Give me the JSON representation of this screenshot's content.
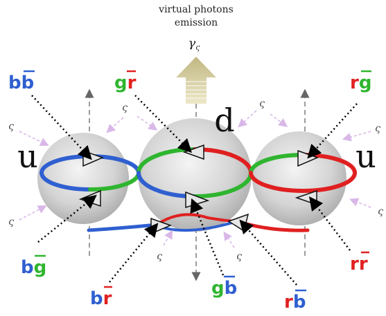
{
  "title": {
    "line1": "virtual photons",
    "line2": "emission",
    "gamma": "γ",
    "gamma_sub": "ς"
  },
  "quarks": {
    "left": "u",
    "center": "d",
    "right": "u"
  },
  "sigma_symbol": "ς",
  "colors": {
    "blue": "#2f5fd0",
    "green": "#2fb52f",
    "red": "#e02020",
    "arrow_fill": "#d8cfa0",
    "photon_arrow": "#c8c08a",
    "sigma_arrow": "#d9b8e8"
  },
  "gluon_labels": {
    "bb": {
      "a": "b",
      "b": "b",
      "a_color": "blue",
      "b_color": "blue"
    },
    "gr": {
      "a": "g",
      "b": "r",
      "a_color": "green",
      "b_color": "red"
    },
    "rg": {
      "a": "r",
      "b": "g",
      "a_color": "red",
      "b_color": "green"
    },
    "bg": {
      "a": "b",
      "b": "g",
      "a_color": "blue",
      "b_color": "green"
    },
    "rr": {
      "a": "r",
      "b": "r",
      "a_color": "red",
      "b_color": "red"
    },
    "br": {
      "a": "b",
      "b": "r",
      "a_color": "blue",
      "b_color": "red"
    },
    "gb": {
      "a": "g",
      "b": "b",
      "a_color": "green",
      "b_color": "blue"
    },
    "rb": {
      "a": "r",
      "b": "b",
      "a_color": "red",
      "b_color": "blue"
    }
  }
}
